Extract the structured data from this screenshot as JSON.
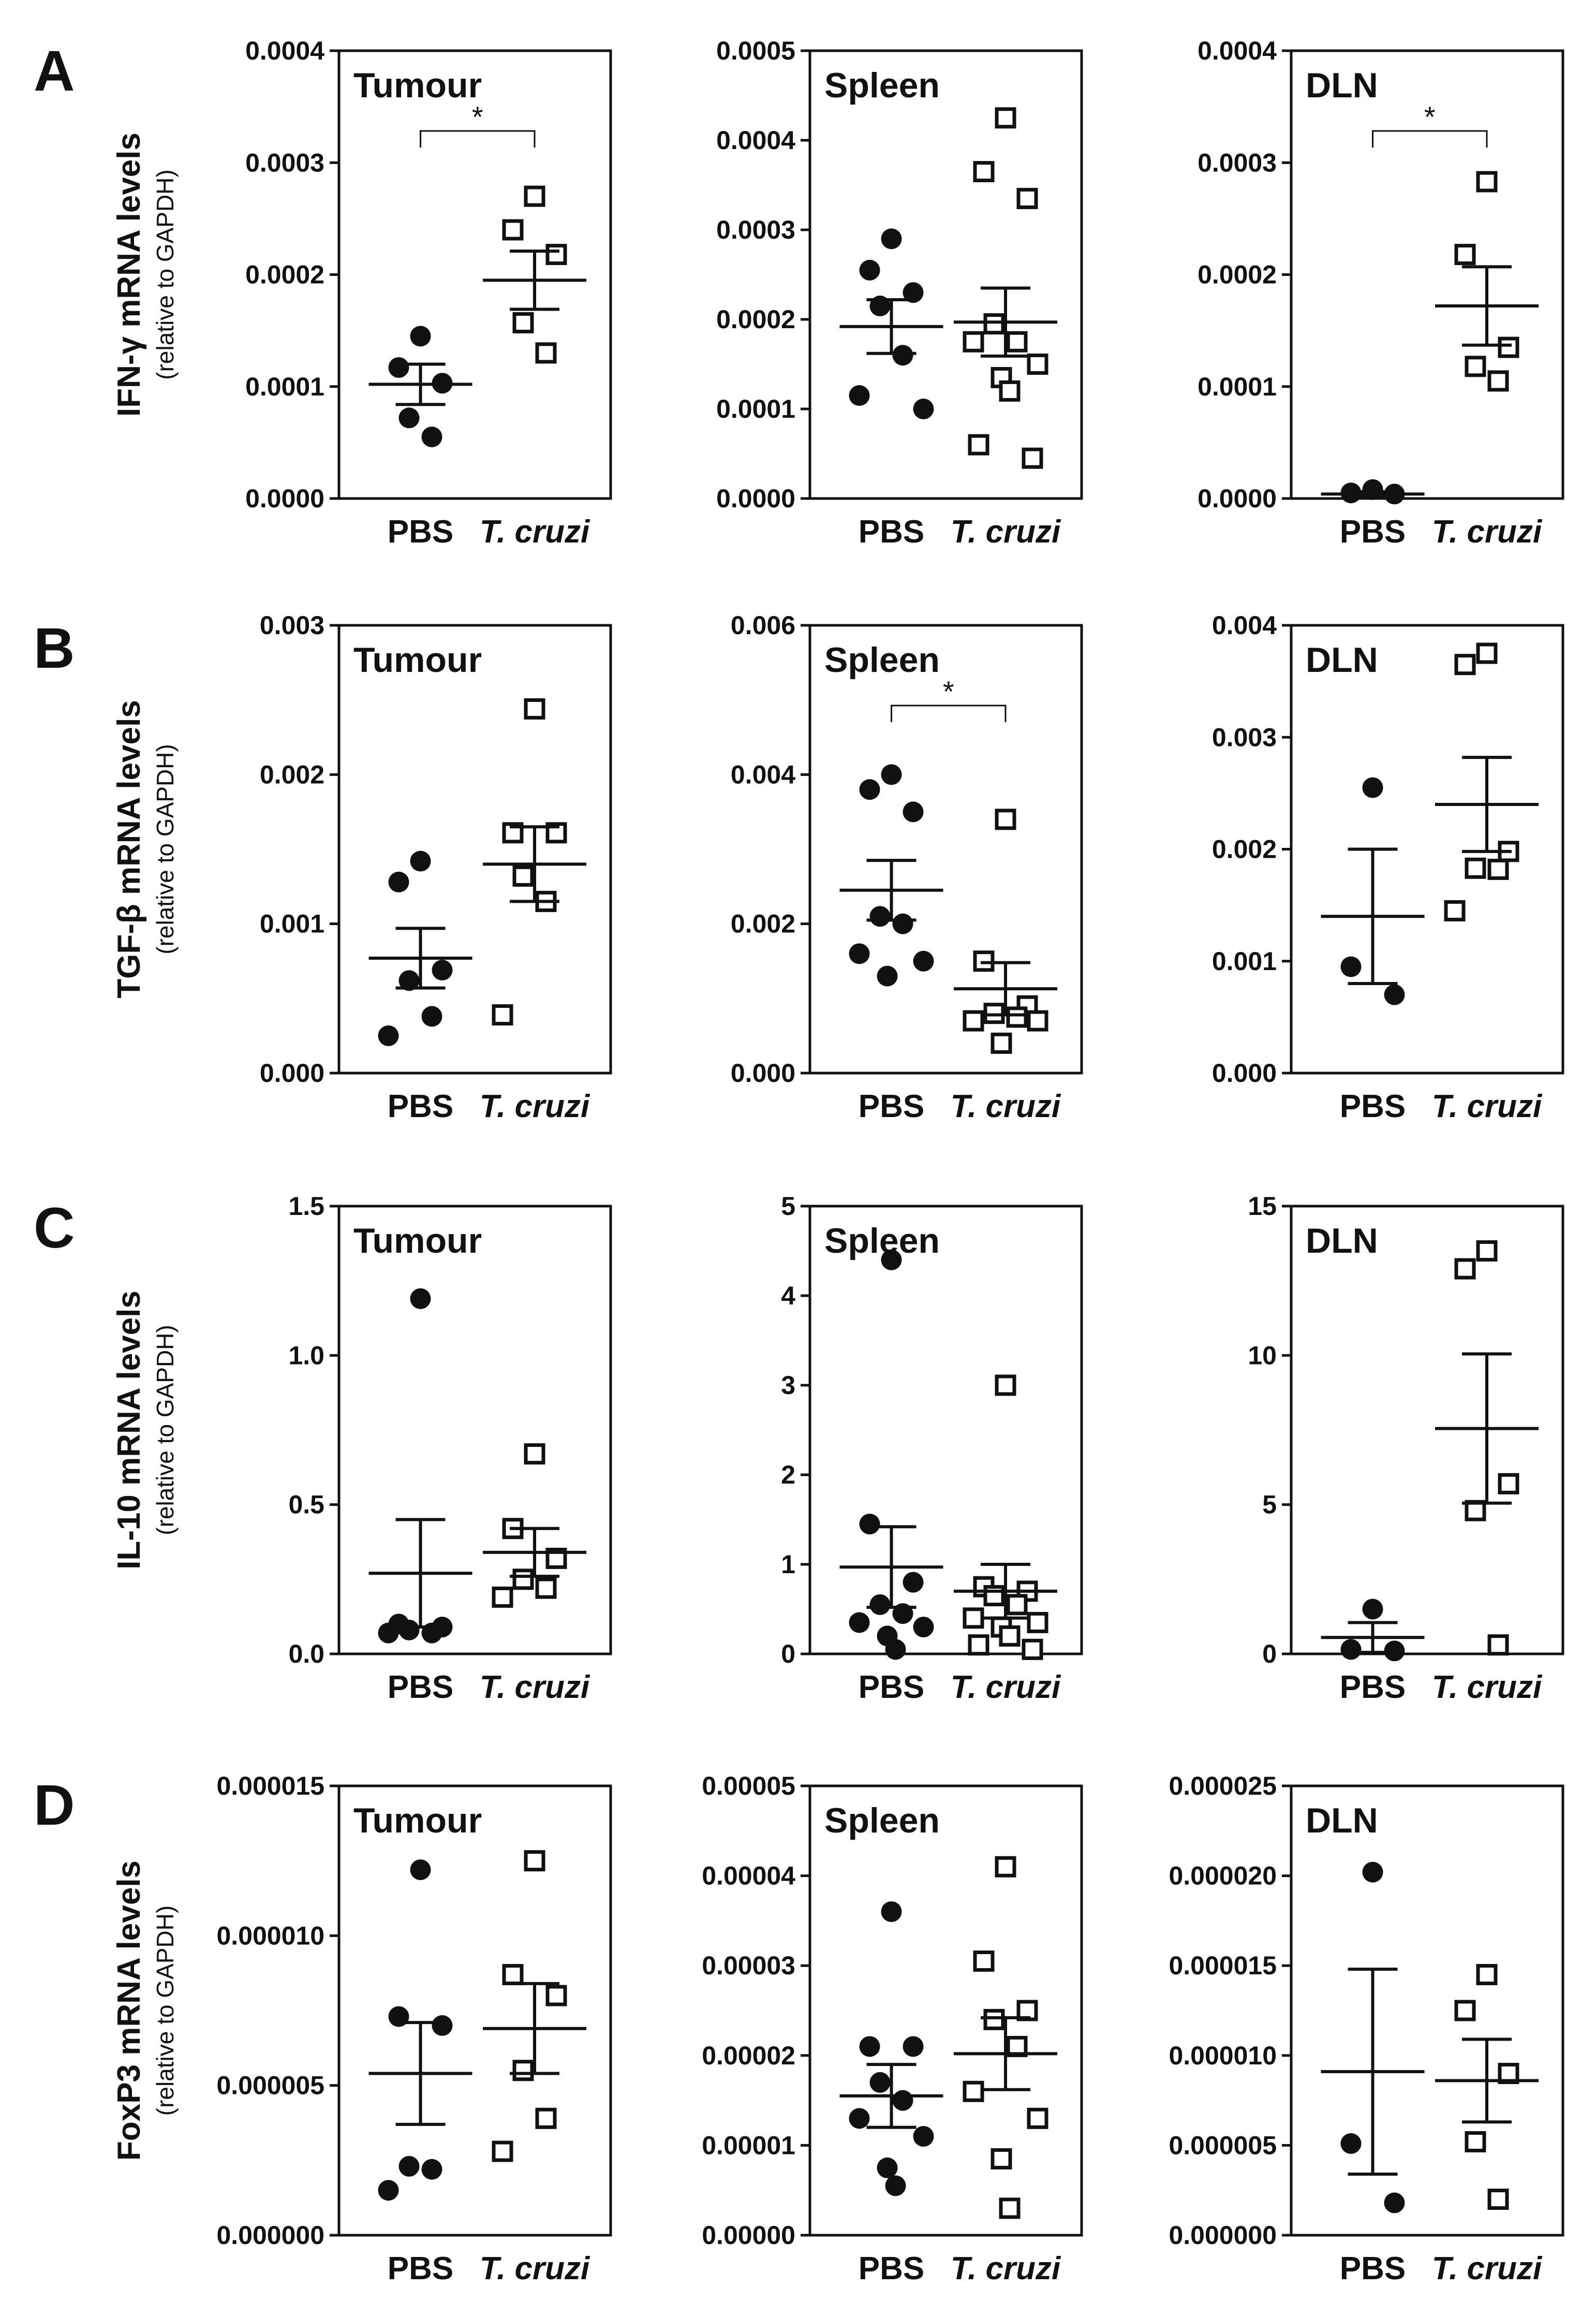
{
  "chart_data": {
    "type": "scatter",
    "categories": [
      "PBS",
      "T. cruzi"
    ],
    "rows": [
      {
        "letter": "A",
        "ylabel": "IFN-γ mRNA levels",
        "ysub": "(relative to GAPDH)",
        "panels": [
          {
            "title": "Tumour",
            "ylim": [
              0,
              0.0004
            ],
            "ticks": [
              "0.0000",
              "0.0001",
              "0.0002",
              "0.0003",
              "0.0004"
            ],
            "significance": "*",
            "groups": [
              {
                "name": "PBS",
                "marker": "circle",
                "mean": 0.000102,
                "sem": 1.8e-05,
                "points": [
                  0.000145,
                  0.000117,
                  0.000103,
                  7.2e-05,
                  5.5e-05
                ]
              },
              {
                "name": "T. cruzi",
                "marker": "square",
                "mean": 0.000195,
                "sem": 2.6e-05,
                "points": [
                  0.00027,
                  0.00024,
                  0.000218,
                  0.000157,
                  0.00013
                ]
              }
            ]
          },
          {
            "title": "Spleen",
            "ylim": [
              0,
              0.0005
            ],
            "ticks": [
              "0.0000",
              "0.0001",
              "0.0002",
              "0.0003",
              "0.0004",
              "0.0005"
            ],
            "significance": "",
            "groups": [
              {
                "name": "PBS",
                "marker": "circle",
                "mean": 0.000192,
                "sem": 3e-05,
                "points": [
                  0.00029,
                  0.000255,
                  0.00023,
                  0.000215,
                  0.00016,
                  0.000115,
                  0.0001
                ]
              },
              {
                "name": "T. cruzi",
                "marker": "square",
                "mean": 0.000197,
                "sem": 3.8e-05,
                "points": [
                  0.000425,
                  0.000365,
                  0.000335,
                  0.000195,
                  0.000175,
                  0.000175,
                  0.00015,
                  0.000135,
                  0.00012,
                  6e-05,
                  4.5e-05
                ]
              }
            ]
          },
          {
            "title": "DLN",
            "ylim": [
              0,
              0.0004
            ],
            "ticks": [
              "0.0000",
              "0.0001",
              "0.0002",
              "0.0003",
              "0.0004"
            ],
            "significance": "*",
            "groups": [
              {
                "name": "PBS",
                "marker": "circle",
                "mean": 4e-06,
                "sem": 2e-06,
                "points": [
                  8e-06,
                  5e-06,
                  4e-06
                ]
              },
              {
                "name": "T. cruzi",
                "marker": "square",
                "mean": 0.000172,
                "sem": 3.5e-05,
                "points": [
                  0.000283,
                  0.000218,
                  0.000135,
                  0.000118,
                  0.000105
                ]
              }
            ]
          }
        ]
      },
      {
        "letter": "B",
        "ylabel": "TGF-β mRNA levels",
        "ysub": "(relative to GAPDH)",
        "panels": [
          {
            "title": "Tumour",
            "ylim": [
              0,
              0.003
            ],
            "ticks": [
              "0.000",
              "0.001",
              "0.002",
              "0.003"
            ],
            "significance": "",
            "groups": [
              {
                "name": "PBS",
                "marker": "circle",
                "mean": 0.00077,
                "sem": 0.0002,
                "points": [
                  0.00142,
                  0.00128,
                  0.00069,
                  0.00062,
                  0.00038,
                  0.00025
                ]
              },
              {
                "name": "T. cruzi",
                "marker": "square",
                "mean": 0.0014,
                "sem": 0.00025,
                "points": [
                  0.00244,
                  0.00161,
                  0.00161,
                  0.00132,
                  0.00115,
                  0.00039
                ]
              }
            ]
          },
          {
            "title": "Spleen",
            "ylim": [
              0,
              0.006
            ],
            "ticks": [
              "0.000",
              "0.002",
              "0.004",
              "0.006"
            ],
            "significance": "*",
            "groups": [
              {
                "name": "PBS",
                "marker": "circle",
                "mean": 0.00245,
                "sem": 0.0004,
                "points": [
                  0.004,
                  0.0038,
                  0.0035,
                  0.0021,
                  0.002,
                  0.0016,
                  0.0015,
                  0.0013
                ]
              },
              {
                "name": "T. cruzi",
                "marker": "square",
                "mean": 0.00113,
                "sem": 0.00035,
                "points": [
                  0.0034,
                  0.0015,
                  0.0009,
                  0.0008,
                  0.00075,
                  0.0007,
                  0.0007,
                  0.0004
                ]
              }
            ]
          },
          {
            "title": "DLN",
            "ylim": [
              0,
              0.004
            ],
            "ticks": [
              "0.000",
              "0.001",
              "0.002",
              "0.003",
              "0.004"
            ],
            "significance": "",
            "groups": [
              {
                "name": "PBS",
                "marker": "circle",
                "mean": 0.0014,
                "sem": 0.0006,
                "points": [
                  0.00255,
                  0.00095,
                  0.0007
                ]
              },
              {
                "name": "T. cruzi",
                "marker": "square",
                "mean": 0.0024,
                "sem": 0.00042,
                "points": [
                  0.00375,
                  0.00365,
                  0.00198,
                  0.00183,
                  0.00182,
                  0.00145
                ]
              }
            ]
          }
        ]
      },
      {
        "letter": "C",
        "ylabel": "IL-10 mRNA levels",
        "ysub": "(relative to GAPDH)",
        "panels": [
          {
            "title": "Tumour",
            "ylim": [
              0,
              1.5
            ],
            "ticks": [
              "0.0",
              "0.5",
              "1.0",
              "1.5"
            ],
            "significance": "",
            "groups": [
              {
                "name": "PBS",
                "marker": "circle",
                "mean": 0.27,
                "sem": 0.18,
                "points": [
                  1.19,
                  0.1,
                  0.09,
                  0.08,
                  0.07,
                  0.07
                ]
              },
              {
                "name": "T. cruzi",
                "marker": "square",
                "mean": 0.34,
                "sem": 0.08,
                "points": [
                  0.67,
                  0.42,
                  0.32,
                  0.25,
                  0.22,
                  0.19
                ]
              }
            ]
          },
          {
            "title": "Spleen",
            "ylim": [
              0,
              5
            ],
            "ticks": [
              "0",
              "1",
              "2",
              "3",
              "4",
              "5"
            ],
            "significance": "",
            "groups": [
              {
                "name": "PBS",
                "marker": "circle",
                "mean": 0.97,
                "sem": 0.45,
                "points": [
                  4.4,
                  1.45,
                  0.8,
                  0.55,
                  0.45,
                  0.35,
                  0.3,
                  0.2,
                  0.05
                ]
              },
              {
                "name": "T. cruzi",
                "marker": "square",
                "mean": 0.7,
                "sem": 0.3,
                "points": [
                  3.0,
                  0.75,
                  0.7,
                  0.65,
                  0.55,
                  0.4,
                  0.35,
                  0.3,
                  0.2,
                  0.1,
                  0.05
                ]
              }
            ]
          },
          {
            "title": "DLN",
            "ylim": [
              0,
              15
            ],
            "ticks": [
              "0",
              "5",
              "10",
              "15"
            ],
            "significance": "",
            "groups": [
              {
                "name": "PBS",
                "marker": "circle",
                "mean": 0.55,
                "sem": 0.5,
                "points": [
                  1.5,
                  0.15,
                  0.1
                ]
              },
              {
                "name": "T. cruzi",
                "marker": "square",
                "mean": 7.55,
                "sem": 2.5,
                "points": [
                  13.5,
                  12.9,
                  5.7,
                  4.8,
                  0.3
                ]
              }
            ]
          }
        ]
      },
      {
        "letter": "D",
        "ylabel": "FoxP3 mRNA levels",
        "ysub": "(relative to GAPDH)",
        "panels": [
          {
            "title": "Tumour",
            "ylim": [
              0,
              1.5e-05
            ],
            "ticks": [
              "0.000000",
              "0.000005",
              "0.000010",
              "0.000015"
            ],
            "significance": "",
            "groups": [
              {
                "name": "PBS",
                "marker": "circle",
                "mean": 5.4e-06,
                "sem": 1.7e-06,
                "points": [
                  1.22e-05,
                  7.3e-06,
                  7e-06,
                  2.3e-06,
                  2.2e-06,
                  1.5e-06
                ]
              },
              {
                "name": "T. cruzi",
                "marker": "square",
                "mean": 6.9e-06,
                "sem": 1.5e-06,
                "points": [
                  1.25e-05,
                  8.7e-06,
                  8e-06,
                  5.5e-06,
                  3.9e-06,
                  2.8e-06
                ]
              }
            ]
          },
          {
            "title": "Spleen",
            "ylim": [
              0,
              5e-05
            ],
            "ticks": [
              "0.00000",
              "0.00001",
              "0.00002",
              "0.00003",
              "0.00004",
              "0.00005"
            ],
            "significance": "",
            "groups": [
              {
                "name": "PBS",
                "marker": "circle",
                "mean": 1.55e-05,
                "sem": 3.5e-06,
                "points": [
                  3.6e-05,
                  2.1e-05,
                  2.1e-05,
                  1.7e-05,
                  1.5e-05,
                  1.3e-05,
                  1.1e-05,
                  7.5e-06,
                  5.5e-06
                ]
              },
              {
                "name": "T. cruzi",
                "marker": "square",
                "mean": 2.02e-05,
                "sem": 4e-06,
                "points": [
                  4.1e-05,
                  3.05e-05,
                  2.5e-05,
                  2.4e-05,
                  2.1e-05,
                  1.6e-05,
                  1.3e-05,
                  8.5e-06,
                  3e-06
                ]
              }
            ]
          },
          {
            "title": "DLN",
            "ylim": [
              0,
              2.5e-05
            ],
            "ticks": [
              "0.000000",
              "0.000005",
              "0.000010",
              "0.000015",
              "0.000020",
              "0.000025"
            ],
            "significance": "",
            "groups": [
              {
                "name": "PBS",
                "marker": "circle",
                "mean": 9.1e-06,
                "sem": 5.7e-06,
                "points": [
                  2.02e-05,
                  5.1e-06,
                  1.8e-06
                ]
              },
              {
                "name": "T. cruzi",
                "marker": "square",
                "mean": 8.6e-06,
                "sem": 2.3e-06,
                "points": [
                  1.45e-05,
                  1.25e-05,
                  9e-06,
                  5.2e-06,
                  2e-06
                ]
              }
            ]
          }
        ]
      }
    ]
  }
}
